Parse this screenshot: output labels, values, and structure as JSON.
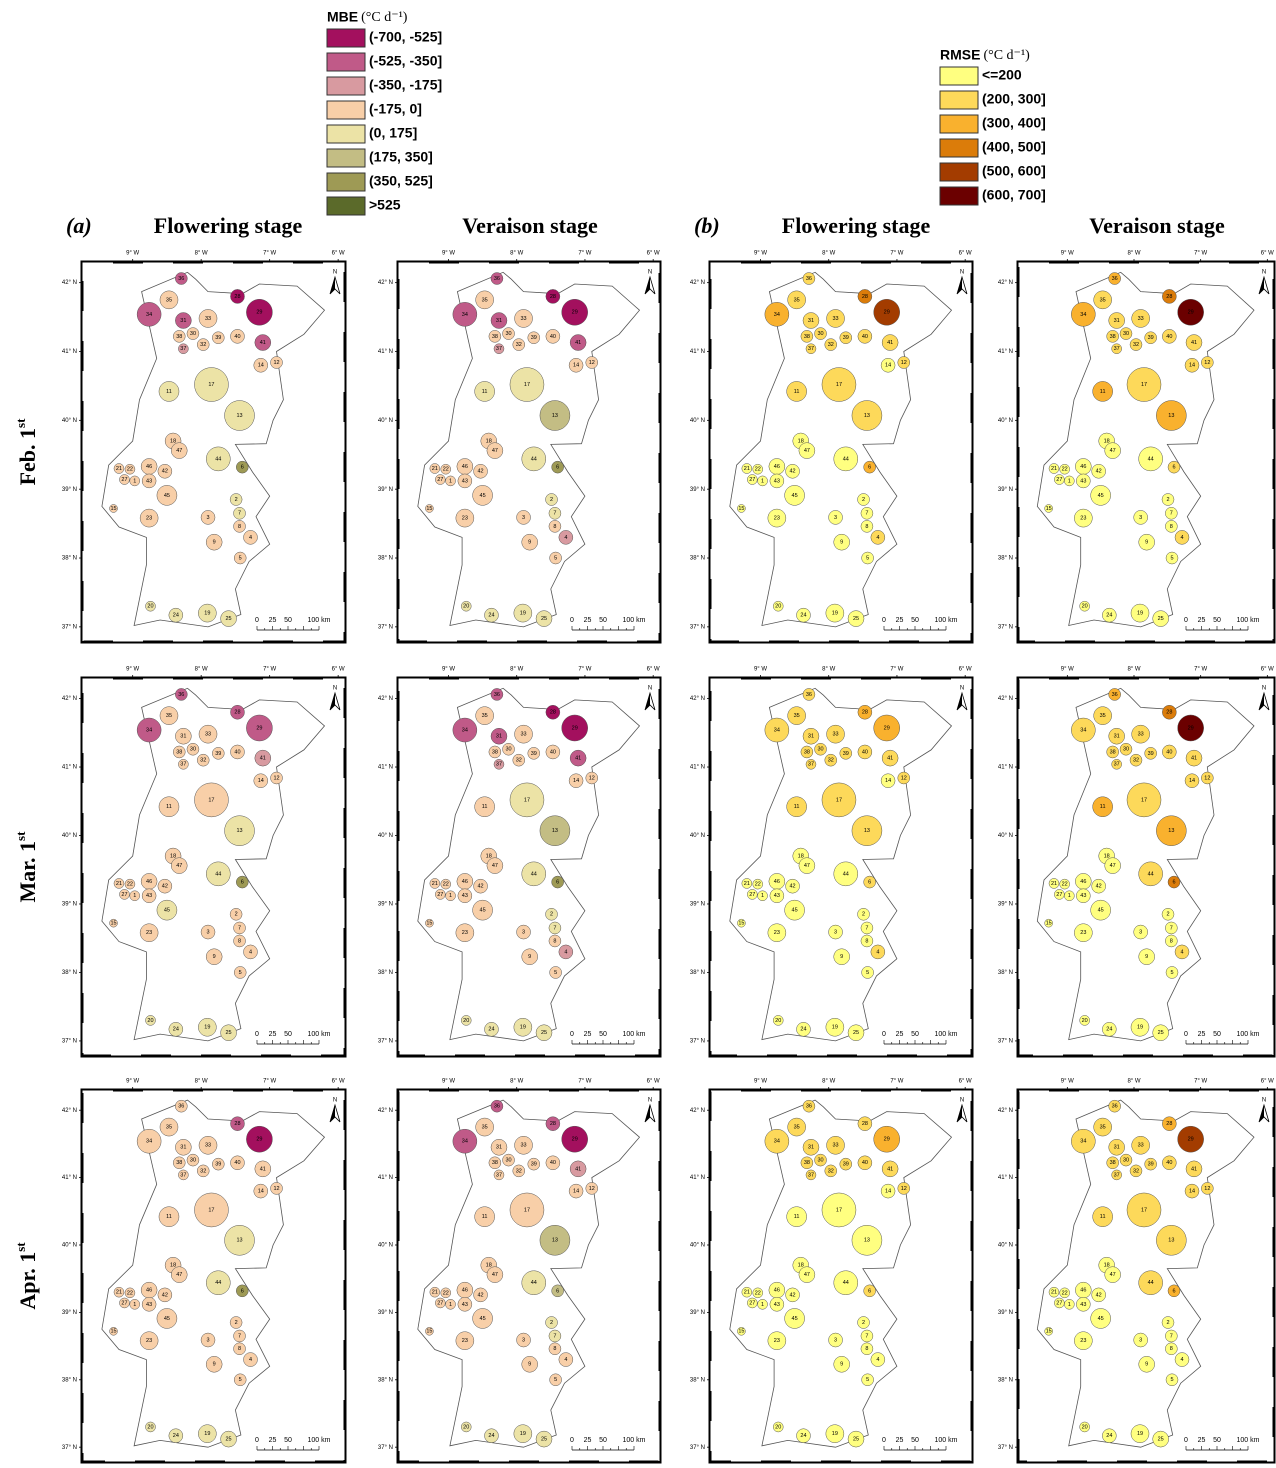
{
  "legends": [
    {
      "title": "MBE",
      "unit": "(°C d⁻¹)",
      "classes": [
        "(-700, -525]",
        "(-525, -350]",
        "(-350, -175]",
        "(-175, 0]",
        "(0, 175]",
        "(175, 350]",
        "(350, 525]",
        ">525"
      ],
      "colors": [
        "#a3105e",
        "#c05a88",
        "#d89aa0",
        "#f8cfa8",
        "#ece3a6",
        "#c3bd84",
        "#9e9a55",
        "#5b6a2a"
      ]
    },
    {
      "title": "RMSE",
      "unit": "(°C d⁻¹)",
      "classes": [
        "<=200",
        "(200, 300]",
        "(300, 400]",
        "(400, 500]",
        "(500, 600]",
        "(600, 700]"
      ],
      "colors": [
        "#ffff80",
        "#fdd95a",
        "#f9b12e",
        "#db7c0a",
        "#a33c00",
        "#6b0000"
      ]
    }
  ],
  "headers": {
    "a": "(a)",
    "b": "(b)",
    "flowering": "Flowering stage",
    "veraison": "Veraison stage"
  },
  "rows": [
    {
      "text": "Feb. 1",
      "sup": "st"
    },
    {
      "text": "Mar. 1",
      "sup": "st"
    },
    {
      "text": "Apr. 1",
      "sup": "st"
    }
  ],
  "lon_ticks": [
    {
      "value": -9,
      "label": "9° W"
    },
    {
      "value": -8,
      "label": "8° W"
    },
    {
      "value": -7,
      "label": "7° W"
    },
    {
      "value": -6,
      "label": "6° W"
    }
  ],
  "lat_ticks": [
    {
      "value": 42,
      "label": "42° N"
    },
    {
      "value": 41,
      "label": "41° N"
    },
    {
      "value": 40,
      "label": "40° N"
    },
    {
      "value": 39,
      "label": "39° N"
    },
    {
      "value": 38,
      "label": "38° N"
    },
    {
      "value": 37,
      "label": "37° N"
    }
  ],
  "scale_labels": [
    "0",
    "25",
    "50",
    "100 km"
  ],
  "north": "N",
  "regions": [
    "36",
    "35",
    "34",
    "31",
    "33",
    "28",
    "29",
    "38",
    "30",
    "32",
    "39",
    "40",
    "37",
    "41",
    "14",
    "12",
    "17",
    "11",
    "13",
    "18",
    "47",
    "44",
    "46",
    "22",
    "21",
    "43",
    "42",
    "27",
    "1",
    "45",
    "6",
    "2",
    "7",
    "3",
    "8",
    "23",
    "15",
    "4",
    "9",
    "5",
    "20",
    "24",
    "19",
    "25"
  ],
  "panels": [
    {
      "legend": 0,
      "classes": [
        1,
        3,
        1,
        1,
        3,
        0,
        0,
        3,
        3,
        3,
        3,
        3,
        2,
        1,
        3,
        3,
        4,
        4,
        4,
        3,
        3,
        4,
        3,
        3,
        3,
        3,
        3,
        3,
        3,
        3,
        6,
        4,
        4,
        3,
        3,
        3,
        3,
        3,
        3,
        3,
        4,
        4,
        4,
        4
      ]
    },
    {
      "legend": 0,
      "classes": [
        1,
        3,
        1,
        1,
        3,
        0,
        0,
        3,
        3,
        3,
        3,
        3,
        2,
        1,
        3,
        3,
        4,
        4,
        5,
        3,
        3,
        4,
        3,
        3,
        3,
        3,
        3,
        3,
        3,
        3,
        6,
        4,
        4,
        3,
        3,
        3,
        3,
        2,
        3,
        3,
        4,
        4,
        4,
        4
      ]
    },
    {
      "legend": 1,
      "classes": [
        1,
        1,
        2,
        1,
        1,
        3,
        4,
        1,
        1,
        1,
        1,
        1,
        1,
        1,
        0,
        1,
        1,
        1,
        1,
        0,
        0,
        0,
        0,
        0,
        0,
        0,
        0,
        0,
        0,
        0,
        2,
        0,
        0,
        0,
        0,
        0,
        0,
        1,
        0,
        0,
        0,
        0,
        0,
        0
      ]
    },
    {
      "legend": 1,
      "classes": [
        2,
        1,
        2,
        1,
        1,
        3,
        5,
        1,
        1,
        1,
        1,
        1,
        1,
        1,
        1,
        1,
        1,
        2,
        2,
        0,
        0,
        0,
        0,
        0,
        0,
        0,
        0,
        0,
        0,
        0,
        1,
        0,
        0,
        0,
        0,
        0,
        0,
        1,
        0,
        0,
        0,
        0,
        0,
        0
      ]
    },
    {
      "legend": 0,
      "classes": [
        1,
        3,
        1,
        3,
        3,
        1,
        1,
        3,
        3,
        3,
        3,
        3,
        3,
        2,
        3,
        3,
        3,
        3,
        4,
        3,
        3,
        4,
        3,
        3,
        3,
        3,
        3,
        3,
        3,
        4,
        6,
        3,
        3,
        3,
        3,
        3,
        3,
        3,
        3,
        3,
        4,
        4,
        4,
        4
      ]
    },
    {
      "legend": 0,
      "classes": [
        1,
        3,
        1,
        1,
        3,
        0,
        0,
        3,
        3,
        3,
        3,
        3,
        2,
        1,
        3,
        3,
        4,
        3,
        5,
        3,
        3,
        4,
        3,
        3,
        3,
        3,
        3,
        3,
        3,
        3,
        6,
        4,
        4,
        3,
        3,
        3,
        3,
        2,
        3,
        3,
        4,
        4,
        4,
        4
      ]
    },
    {
      "legend": 1,
      "classes": [
        1,
        1,
        1,
        1,
        1,
        2,
        2,
        1,
        1,
        1,
        1,
        1,
        1,
        1,
        0,
        1,
        1,
        1,
        1,
        0,
        0,
        0,
        0,
        0,
        0,
        0,
        0,
        0,
        0,
        0,
        1,
        0,
        0,
        0,
        0,
        0,
        0,
        1,
        0,
        0,
        0,
        0,
        0,
        0
      ]
    },
    {
      "legend": 1,
      "classes": [
        2,
        1,
        1,
        1,
        1,
        3,
        5,
        1,
        1,
        1,
        1,
        1,
        1,
        1,
        1,
        1,
        1,
        2,
        2,
        0,
        0,
        1,
        0,
        0,
        0,
        0,
        0,
        0,
        0,
        0,
        3,
        0,
        0,
        0,
        0,
        0,
        0,
        1,
        0,
        0,
        0,
        0,
        0,
        0
      ]
    },
    {
      "legend": 0,
      "classes": [
        3,
        3,
        3,
        3,
        3,
        1,
        0,
        3,
        3,
        3,
        3,
        3,
        3,
        3,
        3,
        3,
        3,
        3,
        4,
        3,
        3,
        4,
        3,
        3,
        3,
        3,
        3,
        3,
        3,
        3,
        6,
        3,
        3,
        3,
        3,
        3,
        3,
        3,
        3,
        3,
        4,
        4,
        4,
        4
      ]
    },
    {
      "legend": 0,
      "classes": [
        1,
        3,
        1,
        3,
        3,
        1,
        0,
        3,
        3,
        3,
        3,
        3,
        3,
        2,
        3,
        3,
        3,
        3,
        5,
        3,
        3,
        4,
        3,
        3,
        3,
        3,
        3,
        3,
        3,
        3,
        5,
        4,
        4,
        3,
        3,
        3,
        3,
        3,
        3,
        3,
        4,
        4,
        4,
        4
      ]
    },
    {
      "legend": 1,
      "classes": [
        1,
        1,
        1,
        1,
        1,
        1,
        2,
        1,
        1,
        1,
        1,
        1,
        1,
        1,
        0,
        1,
        0,
        0,
        0,
        0,
        0,
        0,
        0,
        0,
        0,
        0,
        0,
        0,
        0,
        0,
        1,
        0,
        0,
        0,
        0,
        0,
        0,
        0,
        0,
        0,
        0,
        0,
        0,
        0
      ]
    },
    {
      "legend": 1,
      "classes": [
        1,
        1,
        1,
        1,
        1,
        2,
        4,
        1,
        1,
        1,
        1,
        1,
        1,
        1,
        1,
        1,
        1,
        1,
        1,
        0,
        0,
        1,
        0,
        0,
        0,
        0,
        0,
        0,
        0,
        0,
        2,
        0,
        0,
        0,
        0,
        0,
        0,
        0,
        0,
        0,
        0,
        0,
        0,
        0
      ]
    }
  ]
}
